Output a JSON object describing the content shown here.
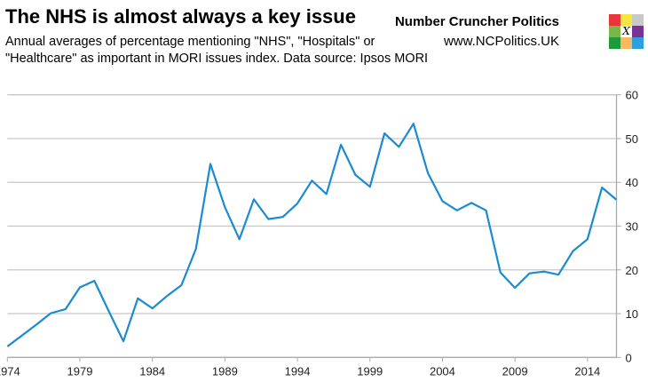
{
  "header": {
    "title": "The NHS is almost always a key issue",
    "subtitle": "Annual averages of percentage mentioning \"NHS\", \"Hospitals\" or \"Healthcare\" as important in MORI issues index. Data source: Ipsos MORI",
    "brand_name": "Number Cruncher Politics",
    "brand_url": "www.NCPolitics.UK",
    "logo_letter": "X",
    "logo_colors": [
      "#e8363a",
      "#f5e642",
      "#c8c8c8",
      "#7ab648",
      "#ffffff",
      "#7b3294",
      "#1f9a3a",
      "#fbb860",
      "#2aa0e0"
    ]
  },
  "chart_data": {
    "type": "line",
    "title": "",
    "xlabel": "",
    "ylabel": "",
    "xlim": [
      1974,
      2016
    ],
    "ylim": [
      0,
      60
    ],
    "y_axis_side": "right",
    "grid": "horizontal",
    "line_color": "#1a8bd0",
    "x_ticks": [
      1974,
      1979,
      1984,
      1989,
      1994,
      1999,
      2004,
      2009,
      2014
    ],
    "y_ticks": [
      0,
      10,
      20,
      30,
      40,
      50,
      60
    ],
    "x": [
      1974,
      1975,
      1976,
      1977,
      1978,
      1979,
      1980,
      1981,
      1982,
      1983,
      1984,
      1985,
      1986,
      1987,
      1988,
      1989,
      1990,
      1991,
      1992,
      1993,
      1994,
      1995,
      1996,
      1997,
      1998,
      1999,
      2000,
      2001,
      2002,
      2003,
      2004,
      2005,
      2006,
      2007,
      2008,
      2009,
      2010,
      2011,
      2012,
      2013,
      2014,
      2015,
      2016
    ],
    "values": [
      2.5,
      5,
      7.5,
      10.1,
      11.0,
      16.0,
      17.5,
      10.5,
      3.7,
      13.5,
      11.2,
      14.0,
      16.5,
      24.8,
      44.2,
      34.3,
      27.0,
      36.1,
      31.6,
      32.1,
      35.2,
      40.4,
      37.3,
      48.6,
      41.7,
      39.0,
      51.2,
      48.1,
      53.4,
      42.1,
      35.7,
      33.6,
      35.3,
      33.6,
      19.4,
      15.9,
      19.2,
      19.6,
      18.9,
      24.3,
      27.0,
      38.8,
      36.0
    ]
  }
}
